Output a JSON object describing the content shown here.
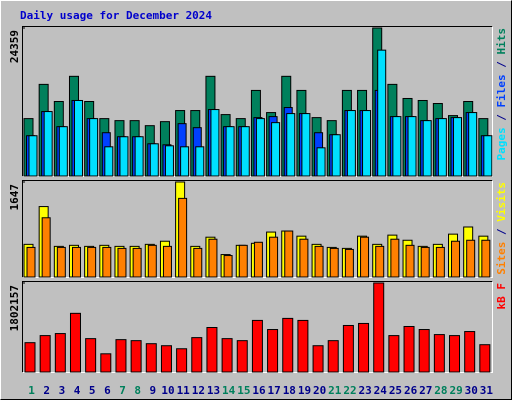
{
  "chart_data": [
    {
      "type": "bar",
      "title": "Daily usage for December 2024",
      "ylim": [
        0,
        24359
      ],
      "yticks": [
        24359
      ],
      "legend_separator": " / ",
      "series": [
        {
          "name": "Hits",
          "color": "#00805c",
          "values": [
            9446,
            15080,
            12262,
            16405,
            12262,
            9446,
            9114,
            9114,
            8285,
            8948,
            10771,
            10771,
            16405,
            10108,
            9446,
            14085,
            10440,
            16405,
            14085,
            9611,
            9114,
            14085,
            14085,
            24359,
            15080,
            12759,
            12428,
            11931,
            9942,
            12262,
            9446
          ]
        },
        {
          "name": "Files",
          "color": "#0040ff",
          "values": [
            6628,
            10605,
            8119,
            12428,
            9446,
            7125,
            6462,
            6462,
            5302,
            5137,
            8616,
            7954,
            10936,
            8119,
            8119,
            9611,
            9776,
            11268,
            10273,
            7125,
            6794,
            10771,
            10771,
            14085,
            9776,
            9776,
            9114,
            9446,
            9611,
            10440,
            6628
          ]
        },
        {
          "name": "Pages",
          "color": "#00e0ff",
          "values": [
            6628,
            10605,
            8119,
            12428,
            9446,
            4805,
            6462,
            6462,
            5302,
            4971,
            4805,
            4805,
            10936,
            8119,
            8119,
            9446,
            8782,
            10273,
            10273,
            4640,
            6794,
            10771,
            10771,
            20713,
            9776,
            9776,
            9114,
            9446,
            9611,
            10440,
            6628
          ]
        }
      ]
    },
    {
      "type": "bar",
      "ylim": [
        0,
        1647
      ],
      "yticks": [
        1647
      ],
      "legend_separator": " / ",
      "series": [
        {
          "name": "Visits",
          "color": "#ffff00",
          "values": [
            566,
            1221,
            531,
            549,
            531,
            549,
            531,
            531,
            566,
            620,
            1647,
            531,
            690,
            389,
            549,
            584,
            779,
            797,
            708,
            566,
            513,
            496,
            708,
            566,
            726,
            637,
            531,
            566,
            743,
            867,
            708
          ]
        },
        {
          "name": "Sites",
          "color": "#ff8000",
          "values": [
            513,
            1027,
            513,
            513,
            513,
            513,
            496,
            496,
            549,
            531,
            1363,
            496,
            655,
            372,
            549,
            602,
            690,
            797,
            655,
            531,
            496,
            478,
            690,
            531,
            655,
            549,
            513,
            513,
            620,
            637,
            637
          ]
        }
      ]
    },
    {
      "type": "bar",
      "ylim": [
        0,
        1802157
      ],
      "yticks": [
        1802157
      ],
      "legend_separator": " / ",
      "categories": [
        "1",
        "2",
        "3",
        "4",
        "5",
        "6",
        "7",
        "8",
        "9",
        "10",
        "11",
        "12",
        "13",
        "14",
        "15",
        "16",
        "17",
        "18",
        "19",
        "20",
        "21",
        "22",
        "23",
        "24",
        "25",
        "26",
        "27",
        "28",
        "29",
        "30",
        "31"
      ],
      "category_colors": [
        "#00805c",
        "#00008b",
        "#00008b",
        "#00008b",
        "#00008b",
        "#00008b",
        "#00805c",
        "#00805c",
        "#00008b",
        "#00008b",
        "#00008b",
        "#00008b",
        "#00008b",
        "#00805c",
        "#00805c",
        "#00008b",
        "#00008b",
        "#00008b",
        "#00008b",
        "#00008b",
        "#00805c",
        "#00805c",
        "#00008b",
        "#00008b",
        "#00008b",
        "#00008b",
        "#00008b",
        "#00805c",
        "#00805c",
        "#00008b",
        "#00008b"
      ],
      "series": [
        {
          "name": "kB F",
          "color": "#ff0000",
          "values": [
            593891,
            737244,
            778202,
            1187782,
            675807,
            368622,
            655328,
            634849,
            573412,
            532454,
            471017,
            696286,
            901078,
            675807,
            634849,
            1044429,
            860120,
            1085387,
            1044429,
            532454,
            634849,
            942036,
            982992,
            1802157,
            737244,
            921557,
            860120,
            757723,
            737244,
            819162,
            552933
          ]
        }
      ]
    }
  ]
}
